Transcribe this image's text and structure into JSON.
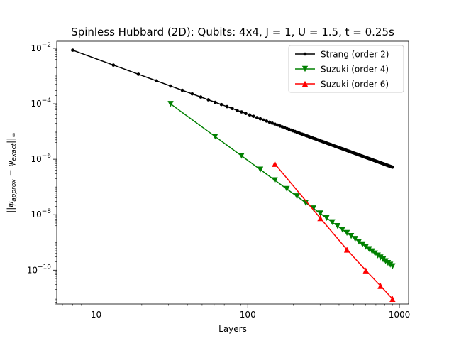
{
  "chart_data": {
    "type": "line",
    "title": "Spinless Hubbard (2D): Qubits: 4x4, J = 1, U = 1.5, t = 0.25s",
    "xlabel": "Layers",
    "ylabel": "||ψ_approx − ψ_exact||_∞",
    "xscale": "log",
    "yscale": "log",
    "xlim": [
      5.5,
      1150
    ],
    "ylim": [
      6e-12,
      0.018
    ],
    "xticks": [
      {
        "value": 10,
        "mantissa": "10",
        "exponent": ""
      },
      {
        "value": 100,
        "mantissa": "100",
        "exponent": ""
      },
      {
        "value": 1000,
        "mantissa": "1000",
        "exponent": ""
      }
    ],
    "yticks": [
      {
        "value": 0.01,
        "mantissa": "10",
        "exponent": "−2"
      },
      {
        "value": 0.0001,
        "mantissa": "10",
        "exponent": "−4"
      },
      {
        "value": 1e-06,
        "mantissa": "10",
        "exponent": "−6"
      },
      {
        "value": 1e-08,
        "mantissa": "10",
        "exponent": "−8"
      },
      {
        "value": 1e-10,
        "mantissa": "10",
        "exponent": "−10"
      }
    ],
    "legend_position": "upper right",
    "series": [
      {
        "name": "Strang (order 2)",
        "color": "#000000",
        "marker": "dot",
        "x": [
          7,
          13,
          19,
          25,
          31,
          37,
          43,
          49,
          55,
          61,
          67,
          73,
          79,
          85,
          91,
          97,
          103,
          109,
          115,
          121,
          127,
          133,
          139,
          145,
          151,
          157,
          163,
          169,
          175,
          181,
          187,
          193,
          199,
          205,
          211,
          217,
          223,
          229,
          235,
          241,
          247,
          253,
          259,
          265,
          271,
          277,
          283,
          289,
          295,
          301,
          307,
          313,
          319,
          325,
          331,
          337,
          343,
          349,
          355,
          361,
          367,
          373,
          379,
          385,
          391,
          397,
          403,
          409,
          415,
          421,
          427,
          433,
          439,
          445,
          451,
          457,
          463,
          469,
          475,
          481,
          487,
          493,
          499,
          505,
          511,
          517,
          523,
          529,
          535,
          541,
          547,
          553,
          559,
          565,
          571,
          577,
          583,
          589,
          595,
          601,
          607,
          613,
          619,
          625,
          631,
          637,
          643,
          649,
          655,
          661,
          667,
          673,
          679,
          685,
          691,
          697,
          703,
          709,
          715,
          721,
          727,
          733,
          739,
          745,
          751,
          757,
          763,
          769,
          775,
          781,
          787,
          793,
          799,
          805,
          811,
          817,
          823,
          829,
          835,
          841,
          847,
          853,
          859,
          865,
          871,
          877,
          883,
          889,
          895,
          901
        ],
        "y_model": {
          "type": "power",
          "coef": 0.42,
          "exponent": -2
        }
      },
      {
        "name": "Suzuki (order 4)",
        "color": "#008000",
        "marker": "triangle-down",
        "x": [
          31,
          61,
          91,
          121,
          151,
          181,
          211,
          241,
          271,
          301,
          331,
          361,
          391,
          421,
          451,
          481,
          511,
          541,
          571,
          601,
          631,
          661,
          691,
          721,
          751,
          781,
          811,
          841,
          871,
          901
        ],
        "y_model": {
          "type": "power",
          "coef": 91,
          "exponent": -4
        }
      },
      {
        "name": "Suzuki (order 6)",
        "color": "#ff0000",
        "marker": "triangle-up",
        "x": [
          151,
          301,
          451,
          601,
          751,
          901
        ],
        "y": [
          6.8e-07,
          7.5e-09,
          5.5e-10,
          9.8e-11,
          2.7e-11,
          9.2e-12
        ]
      }
    ]
  }
}
